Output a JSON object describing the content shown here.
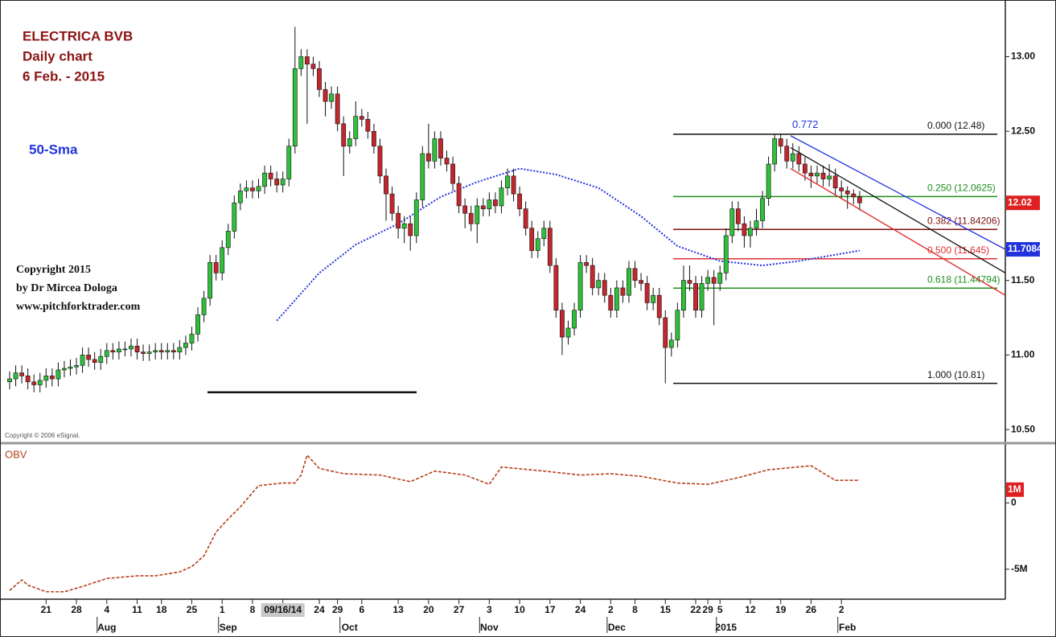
{
  "chart_data": [
    {
      "type": "candlestick",
      "title": "ELECTRICA BVB",
      "subtitle": "Daily chart",
      "date_label": "6 Feb. -  2015",
      "copyright": [
        "Copyright 2015",
        "by Dr Mircea Dologa",
        "www.pitchforktrader.com"
      ],
      "source": "Copyright © 2006 eSignal.",
      "up_color": "#2fbf3a",
      "down_color": "#c4262e",
      "xlim": [
        -1.59,
        164
      ],
      "ylim": [
        10.425,
        13.38
      ],
      "yticks": [
        {
          "value": 10.5,
          "label": "10.50"
        },
        {
          "value": 11,
          "label": "11.00"
        },
        {
          "value": 11.5,
          "label": "11.50"
        },
        {
          "value": 12.5,
          "label": "12.50"
        },
        {
          "value": 13,
          "label": "13.00"
        }
      ],
      "open": [
        10.82,
        10.84,
        10.88,
        10.86,
        10.82,
        10.8,
        10.83,
        10.86,
        10.84,
        10.9,
        10.91,
        10.92,
        10.93,
        11.0,
        10.97,
        10.95,
        10.99,
        11.03,
        11.02,
        11.04,
        11.04,
        11.06,
        11.02,
        11.01,
        11.02,
        11.03,
        11.02,
        11.03,
        11.02,
        11.05,
        11.08,
        11.14,
        11.27,
        11.38,
        11.62,
        11.55,
        11.72,
        11.83,
        12.02,
        12.1,
        12.12,
        12.1,
        12.13,
        12.22,
        12.18,
        12.14,
        12.18,
        12.4,
        12.92,
        13.0,
        12.95,
        12.92,
        12.78,
        12.7,
        12.75,
        12.55,
        12.4,
        12.45,
        12.6,
        12.58,
        12.5,
        12.4,
        12.2,
        12.08,
        11.95,
        11.85,
        11.88,
        11.8,
        12.04,
        12.35,
        12.3,
        12.45,
        12.32,
        12.28,
        12.15,
        12.0,
        11.95,
        11.88,
        12.0,
        11.98,
        12.04,
        12.0,
        12.12,
        12.2,
        12.08,
        11.98,
        11.85,
        11.7,
        11.78,
        11.85,
        11.6,
        11.3,
        11.12,
        11.18,
        11.3,
        11.62,
        11.6,
        11.45,
        11.5,
        11.4,
        11.3,
        11.45,
        11.4,
        11.58,
        11.5,
        11.48,
        11.35,
        11.4,
        11.25,
        11.05,
        11.1,
        11.3,
        11.5,
        11.48,
        11.3,
        11.48,
        11.52,
        11.48,
        11.55,
        11.8,
        11.98,
        11.88,
        11.8,
        11.85,
        11.9,
        12.05,
        12.28,
        12.45,
        12.4,
        12.3,
        12.35,
        12.28,
        12.22,
        12.2,
        12.22,
        12.18,
        12.2,
        12.12,
        12.1,
        12.08,
        12.06
      ],
      "high": [
        10.89,
        10.93,
        10.93,
        10.91,
        10.87,
        10.88,
        10.91,
        10.91,
        10.95,
        10.96,
        10.97,
        10.98,
        11.05,
        11.05,
        11.02,
        11.04,
        11.08,
        11.08,
        11.09,
        11.09,
        11.11,
        11.11,
        11.07,
        11.07,
        11.08,
        11.08,
        11.08,
        11.08,
        11.1,
        11.13,
        11.19,
        11.32,
        11.43,
        11.67,
        11.67,
        11.77,
        11.88,
        12.07,
        12.15,
        12.17,
        12.17,
        12.18,
        12.27,
        12.27,
        12.23,
        12.23,
        12.45,
        13.2,
        13.05,
        13.05,
        13.0,
        12.97,
        12.83,
        12.8,
        12.8,
        12.6,
        12.5,
        12.7,
        12.65,
        12.63,
        12.55,
        12.45,
        12.25,
        12.13,
        12.0,
        11.93,
        11.93,
        12.09,
        12.4,
        12.55,
        12.5,
        12.5,
        12.37,
        12.33,
        12.2,
        12.05,
        12.0,
        12.05,
        12.05,
        12.09,
        12.09,
        12.17,
        12.25,
        12.25,
        12.13,
        12.03,
        11.9,
        11.83,
        11.9,
        11.9,
        11.65,
        11.35,
        11.23,
        11.35,
        11.67,
        11.67,
        11.65,
        11.55,
        11.55,
        11.45,
        11.5,
        11.5,
        11.63,
        11.63,
        11.55,
        11.53,
        11.45,
        11.45,
        11.3,
        11.15,
        11.35,
        11.6,
        11.6,
        11.53,
        11.53,
        11.57,
        11.57,
        11.6,
        11.85,
        12.03,
        12.03,
        11.93,
        11.9,
        11.98,
        12.1,
        12.33,
        12.48,
        12.48,
        12.45,
        12.42,
        12.4,
        12.33,
        12.27,
        12.27,
        12.27,
        12.28,
        12.25,
        12.17,
        12.13,
        12.11,
        12.1
      ],
      "low": [
        10.77,
        10.79,
        10.81,
        10.77,
        10.75,
        10.75,
        10.78,
        10.79,
        10.79,
        10.85,
        10.86,
        10.87,
        10.88,
        10.92,
        10.9,
        10.9,
        10.94,
        10.97,
        10.97,
        10.99,
        10.99,
        10.97,
        10.96,
        10.96,
        10.97,
        10.97,
        10.97,
        10.97,
        10.97,
        11.0,
        11.03,
        11.09,
        11.22,
        11.33,
        11.5,
        11.5,
        11.67,
        11.78,
        11.97,
        12.05,
        12.05,
        12.05,
        12.08,
        12.13,
        12.09,
        12.09,
        12.13,
        12.35,
        12.87,
        12.55,
        12.87,
        12.73,
        12.6,
        12.65,
        12.5,
        12.2,
        12.35,
        12.4,
        12.53,
        12.45,
        12.35,
        12.15,
        11.9,
        11.9,
        11.78,
        11.75,
        11.7,
        11.75,
        11.99,
        12.25,
        12.25,
        12.27,
        12.23,
        12.1,
        11.95,
        11.85,
        11.83,
        11.75,
        11.93,
        11.93,
        11.95,
        11.95,
        12.07,
        12.03,
        11.93,
        11.8,
        11.65,
        11.65,
        11.73,
        11.55,
        11.25,
        11.0,
        11.07,
        11.13,
        11.25,
        11.55,
        11.4,
        11.4,
        11.35,
        11.25,
        11.25,
        11.35,
        11.35,
        11.45,
        11.43,
        11.3,
        11.3,
        11.2,
        10.81,
        10.99,
        11.05,
        11.25,
        11.43,
        11.25,
        11.25,
        11.43,
        11.2,
        11.43,
        11.5,
        11.75,
        11.83,
        11.72,
        11.72,
        11.8,
        11.85,
        12.0,
        12.23,
        12.35,
        12.25,
        12.25,
        12.23,
        12.17,
        12.12,
        12.15,
        12.13,
        12.13,
        12.07,
        12.05,
        11.98,
        12.01,
        11.97
      ],
      "close": [
        10.84,
        10.88,
        10.86,
        10.82,
        10.8,
        10.83,
        10.86,
        10.84,
        10.9,
        10.91,
        10.92,
        10.93,
        11.0,
        10.97,
        10.95,
        10.99,
        11.03,
        11.02,
        11.04,
        11.04,
        11.06,
        11.02,
        11.01,
        11.02,
        11.03,
        11.02,
        11.03,
        11.02,
        11.05,
        11.08,
        11.14,
        11.27,
        11.38,
        11.62,
        11.55,
        11.72,
        11.83,
        12.02,
        12.1,
        12.12,
        12.1,
        12.13,
        12.22,
        12.18,
        12.14,
        12.18,
        12.4,
        12.92,
        13.0,
        12.95,
        12.92,
        12.78,
        12.7,
        12.75,
        12.55,
        12.4,
        12.45,
        12.6,
        12.58,
        12.5,
        12.4,
        12.2,
        12.08,
        11.95,
        11.85,
        11.88,
        11.8,
        12.04,
        12.35,
        12.3,
        12.45,
        12.32,
        12.28,
        12.15,
        12.0,
        11.95,
        11.88,
        12.0,
        11.98,
        12.04,
        12.0,
        12.12,
        12.2,
        12.08,
        11.98,
        11.85,
        11.7,
        11.78,
        11.85,
        11.6,
        11.3,
        11.12,
        11.18,
        11.3,
        11.62,
        11.6,
        11.45,
        11.5,
        11.4,
        11.3,
        11.45,
        11.4,
        11.58,
        11.5,
        11.48,
        11.35,
        11.4,
        11.25,
        11.05,
        11.1,
        11.3,
        11.5,
        11.48,
        11.3,
        11.48,
        11.52,
        11.48,
        11.55,
        11.8,
        11.98,
        11.88,
        11.8,
        11.85,
        11.9,
        12.05,
        12.28,
        12.45,
        12.4,
        12.3,
        12.35,
        12.28,
        12.22,
        12.2,
        12.22,
        12.18,
        12.2,
        12.12,
        12.1,
        12.08,
        12.06,
        12.02
      ],
      "sma": {
        "name": "50-Sma",
        "color": "#2233dd",
        "x": [
          44,
          51,
          57,
          64,
          71,
          77,
          84,
          90,
          97,
          104,
          110,
          117,
          124,
          130,
          140
        ],
        "values": [
          11.23,
          11.55,
          11.74,
          11.88,
          12.06,
          12.16,
          12.25,
          12.21,
          12.12,
          11.93,
          11.73,
          11.63,
          11.6,
          11.63,
          11.7
        ]
      },
      "fib": [
        {
          "label": "0.000 (12.48)",
          "value": 12.48,
          "color": "#111111"
        },
        {
          "label": "0.250 (12.0625)",
          "value": 12.0625,
          "color": "#1f8f1f"
        },
        {
          "label": "0.382 (11.84206)",
          "value": 11.84206,
          "color": "#7a1212"
        },
        {
          "label": "0.500 (11.645)",
          "value": 11.645,
          "color": "#e23030"
        },
        {
          "label": "0.618 (11.44794)",
          "value": 11.44794,
          "color": "#1f8f1f"
        },
        {
          "label": "1.000 (10.81)",
          "value": 10.81,
          "color": "#111111"
        }
      ],
      "pitchfork_label": "0.772",
      "channels": [
        {
          "color": "#2233dd",
          "values": [
            12.47,
            11.7084
          ]
        },
        {
          "color": "#111111",
          "values": [
            12.39,
            11.55
          ]
        },
        {
          "color": "#e02020",
          "values": [
            12.25,
            11.4
          ]
        }
      ],
      "support_line": 10.75
    },
    {
      "type": "line",
      "name": "OBV",
      "color": "#b5401a",
      "xlim": [
        -1.59,
        164
      ],
      "ylim": [
        -7200000,
        4200000
      ],
      "yticks": [
        0,
        {
          "value": -5000000,
          "label": "-5M"
        }
      ],
      "last_label": {
        "value": 1000000,
        "label": "1M"
      },
      "x": [
        0,
        2,
        3,
        6,
        9,
        12,
        16,
        21,
        24,
        28,
        30,
        32,
        34,
        36,
        38,
        41,
        45,
        47,
        48,
        49,
        51,
        55,
        61,
        66,
        70,
        75,
        79,
        81,
        88,
        94,
        99,
        104,
        110,
        115,
        120,
        125,
        132,
        136,
        140
      ],
      "values": [
        -6600000,
        -5800000,
        -6200000,
        -6700000,
        -6700000,
        -6300000,
        -5700000,
        -5500000,
        -5500000,
        -5200000,
        -4800000,
        -4000000,
        -2200000,
        -1200000,
        -300000,
        1300000,
        1500000,
        1500000,
        2100000,
        3600000,
        2600000,
        2200000,
        2100000,
        1600000,
        2400000,
        2100000,
        1400000,
        2700000,
        2400000,
        2100000,
        2200000,
        2000000,
        1500000,
        1400000,
        1900000,
        2500000,
        2800000,
        1700000,
        1700000
      ],
      "xticks": [
        {
          "value": 6,
          "label": "21"
        },
        {
          "value": 11,
          "label": "28"
        },
        {
          "value": 16,
          "label": "4"
        },
        {
          "value": 21,
          "label": "11"
        },
        {
          "value": 25,
          "label": "18"
        },
        {
          "value": 30,
          "label": "25"
        },
        {
          "value": 35,
          "label": "1"
        },
        {
          "value": 40,
          "label": "8"
        },
        {
          "value": 45,
          "label": "09/16/14"
        },
        {
          "value": 51,
          "label": "24"
        },
        {
          "value": 54,
          "label": "29"
        },
        {
          "value": 58,
          "label": "6"
        },
        {
          "value": 64,
          "label": "13"
        },
        {
          "value": 69,
          "label": "20"
        },
        {
          "value": 74,
          "label": "27"
        },
        {
          "value": 79,
          "label": "3"
        },
        {
          "value": 84,
          "label": "10"
        },
        {
          "value": 89,
          "label": "17"
        },
        {
          "value": 94,
          "label": "24"
        },
        {
          "value": 99,
          "label": "2"
        },
        {
          "value": 103,
          "label": "8"
        },
        {
          "value": 108,
          "label": "15"
        },
        {
          "value": 113,
          "label": "22"
        },
        {
          "value": 115,
          "label": "29"
        },
        {
          "value": 117,
          "label": "5"
        },
        {
          "value": 122,
          "label": "12"
        },
        {
          "value": 127,
          "label": "19"
        },
        {
          "value": 132,
          "label": "26"
        },
        {
          "value": 137,
          "label": "2"
        }
      ],
      "months": [
        {
          "value": 16,
          "label": "Aug"
        },
        {
          "value": 36,
          "label": "Sep"
        },
        {
          "value": 56,
          "label": "Oct"
        },
        {
          "value": 79,
          "label": "Nov"
        },
        {
          "value": 100,
          "label": "Dec"
        },
        {
          "value": 118,
          "label": "2015"
        },
        {
          "value": 138,
          "label": "Feb"
        }
      ]
    }
  ]
}
